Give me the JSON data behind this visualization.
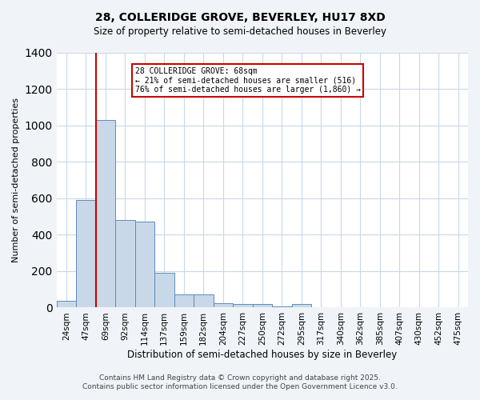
{
  "title": "28, COLLERIDGE GROVE, BEVERLEY, HU17 8XD",
  "subtitle": "Size of property relative to semi-detached houses in Beverley",
  "xlabel": "Distribution of semi-detached houses by size in Beverley",
  "ylabel": "Number of semi-detached properties",
  "bar_values": [
    35,
    590,
    1030,
    480,
    470,
    190,
    72,
    72,
    25,
    18,
    20,
    8,
    18,
    0,
    0,
    0,
    0,
    0,
    0,
    0,
    0
  ],
  "bin_labels": [
    "24sqm",
    "47sqm",
    "69sqm",
    "92sqm",
    "114sqm",
    "137sqm",
    "159sqm",
    "182sqm",
    "204sqm",
    "227sqm",
    "250sqm",
    "272sqm",
    "295sqm",
    "317sqm",
    "340sqm",
    "362sqm",
    "385sqm",
    "407sqm",
    "430sqm",
    "452sqm",
    "475sqm"
  ],
  "bar_color": "#c8d8e8",
  "bar_edge_color": "#5b8db8",
  "red_line_x": 1.5,
  "annotation_title": "28 COLLERIDGE GROVE: 68sqm",
  "annotation_line1": "← 21% of semi-detached houses are smaller (516)",
  "annotation_line2": "76% of semi-detached houses are larger (1,860) →",
  "ylim": [
    0,
    1400
  ],
  "yticks": [
    0,
    200,
    400,
    600,
    800,
    1000,
    1200,
    1400
  ],
  "footer1": "Contains HM Land Registry data © Crown copyright and database right 2025.",
  "footer2": "Contains public sector information licensed under the Open Government Licence v3.0.",
  "background_color": "#f0f4f8",
  "plot_bg_color": "#ffffff",
  "grid_color": "#c8d8e8",
  "annotation_box_color": "#ffffff",
  "annotation_box_edge": "#cc0000",
  "red_line_color": "#cc0000"
}
